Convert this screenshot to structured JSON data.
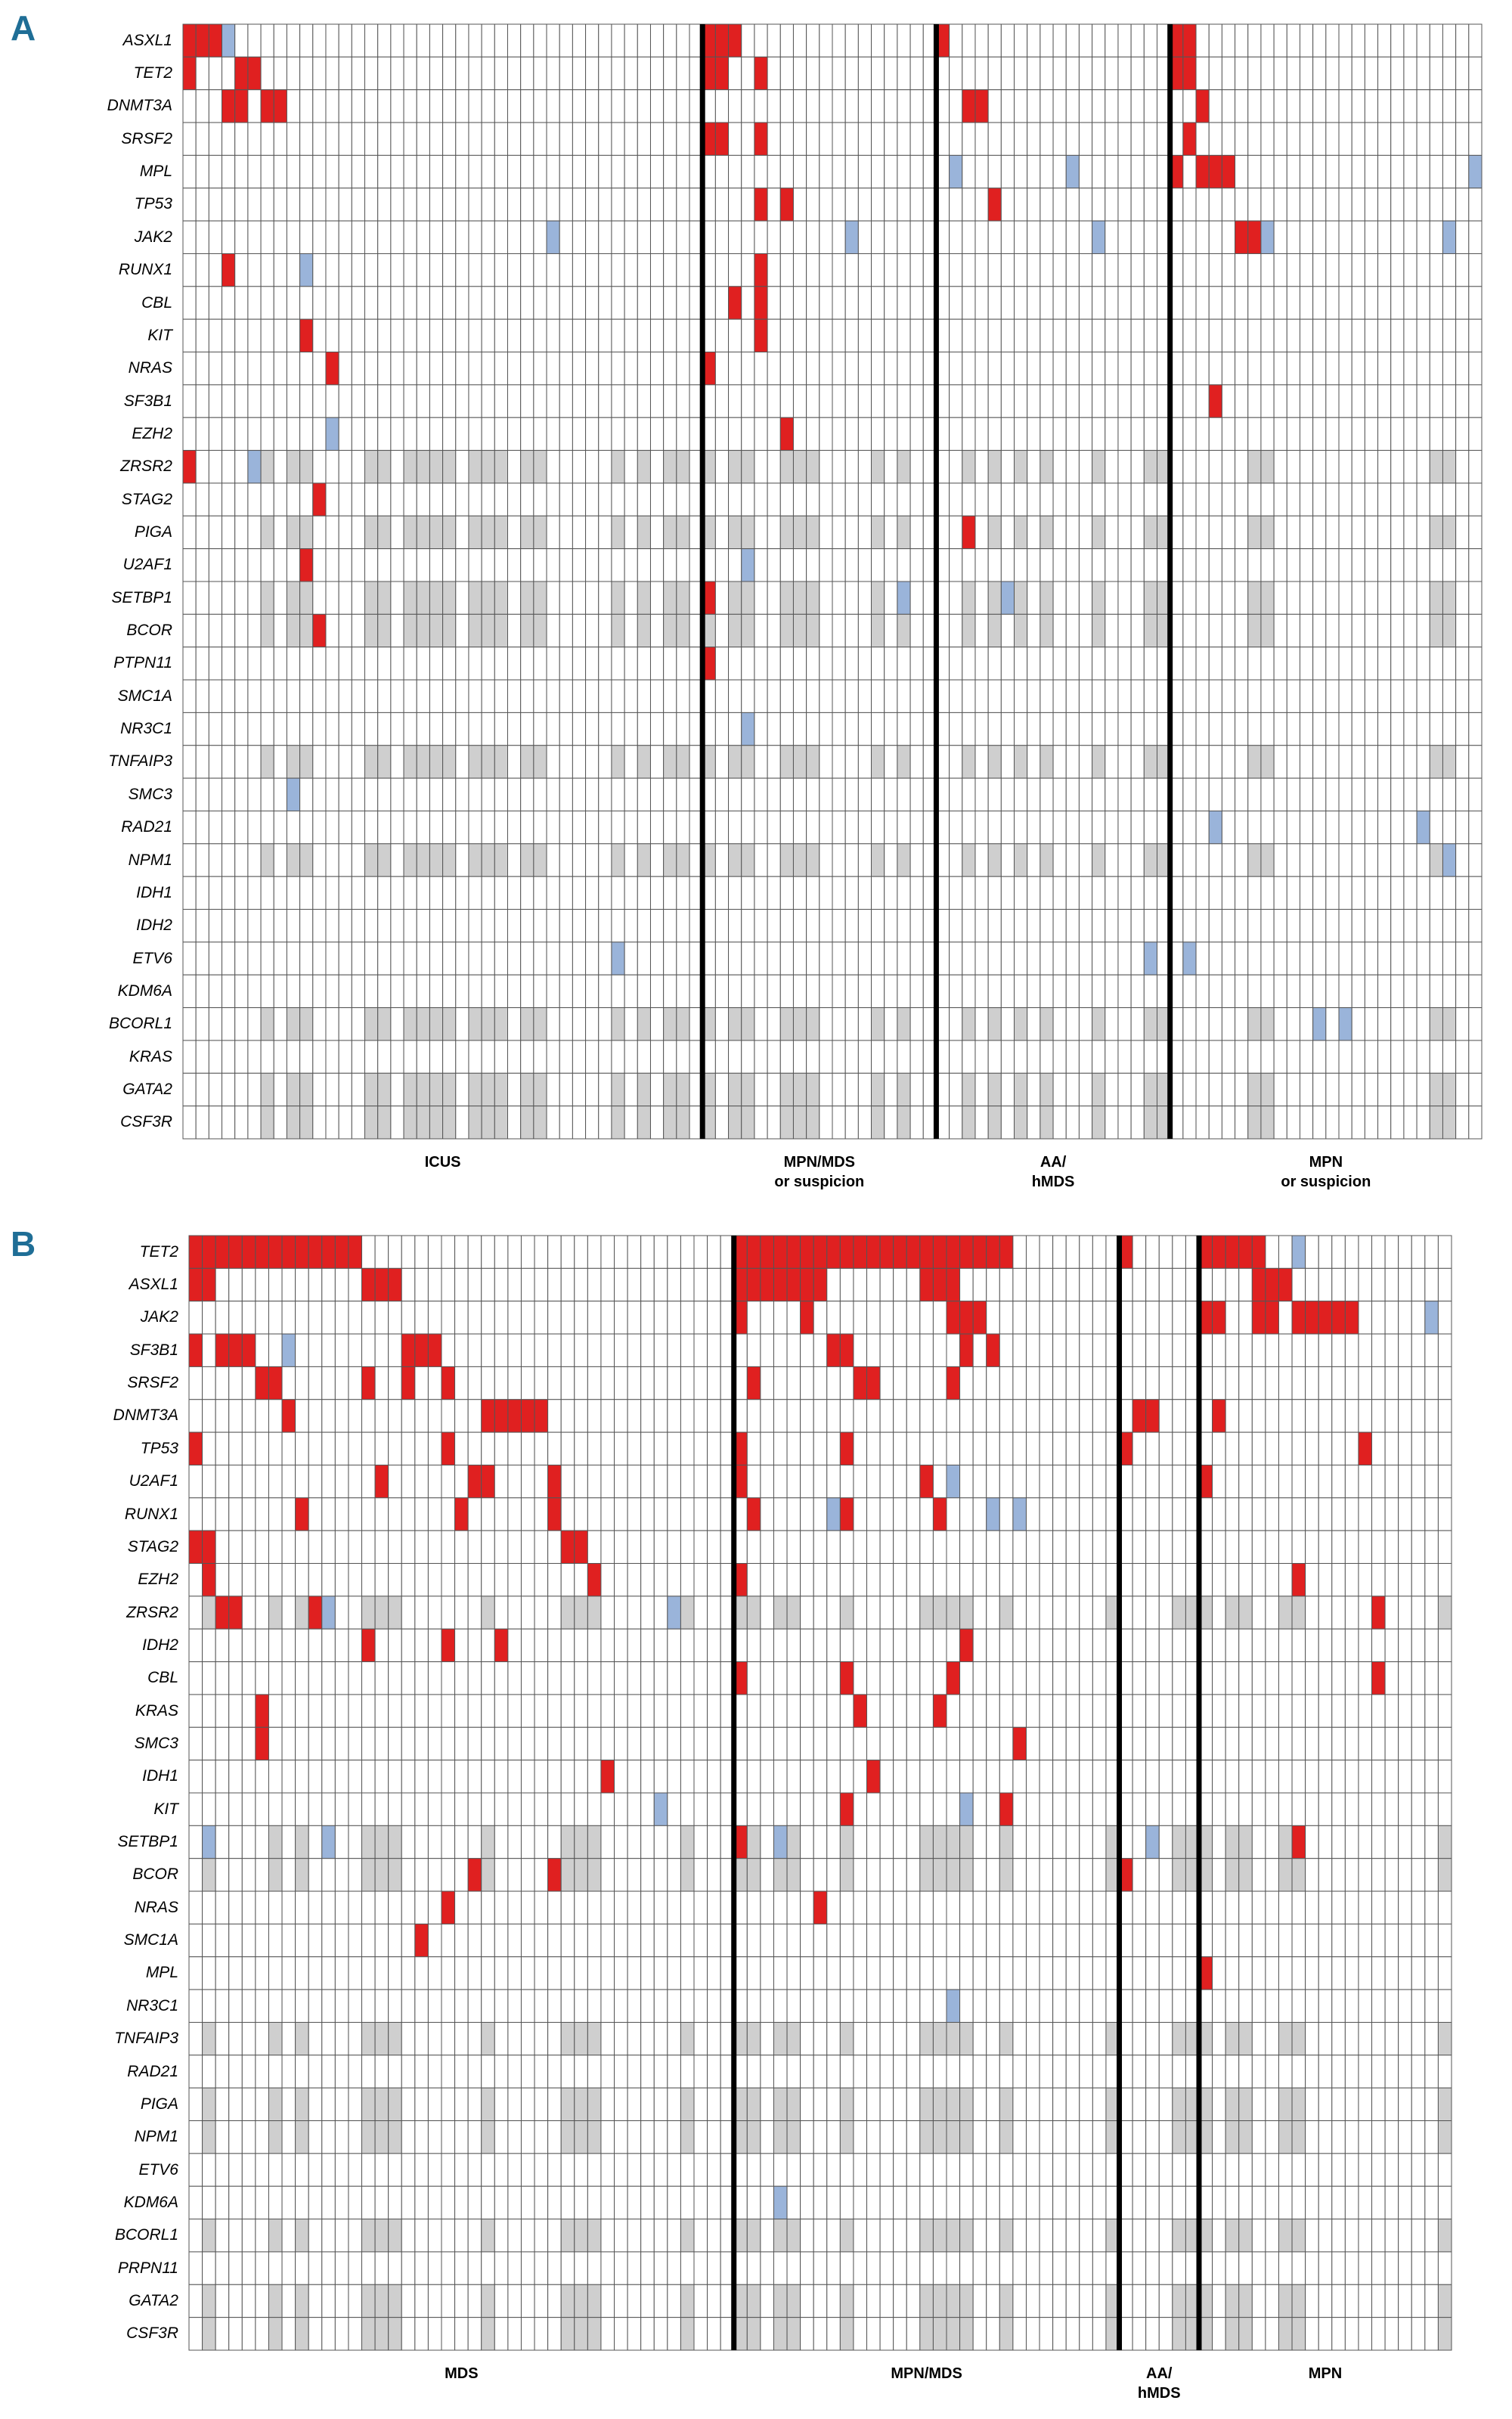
{
  "colors": {
    "mutation": "#e02020",
    "variant": "#9ab4da",
    "not_tested": "#cfcfcf",
    "grid": "#555555",
    "separator": "#000000"
  },
  "chart_data": [
    {
      "type": "heatmap",
      "panel": "A",
      "n_patients": 100,
      "groups": [
        {
          "label": "ICUS",
          "start": 0,
          "count": 40
        },
        {
          "label": "MPN/MDS\nor suspicion",
          "start": 40,
          "count": 18
        },
        {
          "label": "AA/\nhMDS",
          "start": 58,
          "count": 18
        },
        {
          "label": "MPN\nor suspicion",
          "start": 76,
          "count": 24
        }
      ],
      "genes": [
        "ASXL1",
        "TET2",
        "DNMT3A",
        "SRSF2",
        "MPL",
        "TP53",
        "JAK2",
        "RUNX1",
        "CBL",
        "KIT",
        "NRAS",
        "SF3B1",
        "EZH2",
        "ZRSR2",
        "STAG2",
        "PIGA",
        "U2AF1",
        "SETBP1",
        "BCOR",
        "PTPN11",
        "SMC1A",
        "NR3C1",
        "TNFAIP3",
        "SMC3",
        "RAD21",
        "NPM1",
        "IDH1",
        "IDH2",
        "ETV6",
        "KDM6A",
        "BCORL1",
        "KRAS",
        "GATA2",
        "CSF3R"
      ],
      "cells": {
        "ASXL1": {
          "m": [
            0,
            1,
            2,
            40,
            41,
            42,
            58,
            76,
            77
          ],
          "v": [
            3
          ]
        },
        "TET2": {
          "m": [
            0,
            4,
            5,
            40,
            41,
            44,
            76,
            77
          ]
        },
        "DNMT3A": {
          "m": [
            3,
            4,
            6,
            7,
            60,
            61,
            78
          ]
        },
        "SRSF2": {
          "m": [
            40,
            41,
            44,
            77
          ]
        },
        "MPL": {
          "m": [
            76,
            78,
            79,
            80
          ]
        },
        "TP53": {
          "m": [
            44,
            46,
            62
          ]
        },
        "JAK2": {
          "m": [
            81,
            82
          ]
        },
        "RUNX1": {
          "m": [
            3,
            44
          ]
        },
        "CBL": {
          "m": [
            42,
            44
          ]
        },
        "KIT": {
          "m": [
            9,
            44
          ]
        },
        "NRAS": {
          "m": [
            11,
            40
          ]
        },
        "SF3B1": {
          "m": [
            79
          ]
        },
        "EZH2": {
          "m": [
            46
          ]
        },
        "ZRSR2": {
          "m": [
            0
          ]
        },
        "STAG2": {
          "m": [
            10
          ]
        },
        "PIGA": {
          "m": [
            60
          ]
        },
        "U2AF1": {
          "m": [
            9
          ]
        },
        "SETBP1": {
          "m": [
            40
          ]
        },
        "BCOR": {
          "m": [
            10
          ]
        },
        "PTPN11": {
          "m": [
            40
          ]
        }
      },
      "variants": {
        "MPL": [
          59,
          68,
          99
        ],
        "JAK2": [
          28,
          51,
          70,
          83,
          97
        ],
        "RUNX1": [
          9
        ],
        "EZH2": [
          11
        ],
        "ZRSR2": [
          5
        ],
        "U2AF1": [
          43
        ],
        "SETBP1": [
          55,
          63
        ],
        "NR3C1": [
          43
        ],
        "SMC3": [
          8
        ],
        "RAD21": [
          79,
          95
        ],
        "NPM1": [
          97
        ],
        "ETV6": [
          33,
          74,
          77
        ],
        "BCORL1": [
          87,
          89
        ]
      }
    },
    {
      "type": "heatmap",
      "panel": "B",
      "n_patients": 95,
      "groups": [
        {
          "label": "MDS",
          "start": 0,
          "count": 41
        },
        {
          "label": "MPN/MDS",
          "start": 41,
          "count": 29
        },
        {
          "label": "AA/\nhMDS",
          "start": 70,
          "count": 6
        },
        {
          "label": "MPN",
          "start": 76,
          "count": 19
        }
      ],
      "genes": [
        "TET2",
        "ASXL1",
        "JAK2",
        "SF3B1",
        "SRSF2",
        "DNMT3A",
        "TP53",
        "U2AF1",
        "RUNX1",
        "STAG2",
        "EZH2",
        "ZRSR2",
        "IDH2",
        "CBL",
        "KRAS",
        "SMC3",
        "IDH1",
        "KIT",
        "SETBP1",
        "BCOR",
        "NRAS",
        "SMC1A",
        "MPL",
        "NR3C1",
        "TNFAIP3",
        "RAD21",
        "PIGA",
        "NPM1",
        "ETV6",
        "KDM6A",
        "BCORL1",
        "PRPN11",
        "GATA2",
        "CSF3R"
      ],
      "mutations": {
        "TET2": [
          0,
          1,
          2,
          3,
          4,
          5,
          6,
          7,
          8,
          9,
          10,
          11,
          12,
          41,
          42,
          43,
          44,
          45,
          46,
          47,
          48,
          49,
          50,
          51,
          52,
          53,
          54,
          55,
          56,
          57,
          58,
          59,
          60,
          61,
          70,
          76,
          77,
          78,
          79,
          80
        ],
        "ASXL1": [
          0,
          1,
          13,
          14,
          15,
          41,
          42,
          43,
          44,
          45,
          46,
          47,
          55,
          56,
          57,
          80,
          81,
          82
        ],
        "JAK2": [
          41,
          46,
          57,
          58,
          59,
          76,
          77,
          80,
          81,
          83,
          84,
          85,
          86,
          87
        ],
        "SF3B1": [
          0,
          2,
          3,
          4,
          16,
          17,
          18,
          48,
          49,
          58,
          60
        ],
        "SRSF2": [
          5,
          6,
          13,
          16,
          19,
          42,
          50,
          51,
          57
        ],
        "DNMT3A": [
          7,
          22,
          23,
          24,
          25,
          26,
          71,
          72,
          77
        ],
        "TP53": [
          0,
          19,
          41,
          49,
          70,
          88
        ],
        "U2AF1": [
          14,
          21,
          22,
          27,
          41,
          55,
          76
        ],
        "RUNX1": [
          8,
          20,
          27,
          42,
          49,
          56
        ],
        "STAG2": [
          0,
          1,
          28,
          29
        ],
        "EZH2": [
          1,
          30,
          41,
          83
        ],
        "ZRSR2": [
          2,
          3,
          9,
          89
        ],
        "IDH2": [
          13,
          19,
          23,
          58
        ],
        "CBL": [
          41,
          49,
          57,
          89
        ],
        "KRAS": [
          5,
          50,
          56
        ],
        "SMC3": [
          5,
          62
        ],
        "IDH1": [
          31,
          51
        ],
        "KIT": [
          49,
          61
        ],
        "SETBP1": [
          41,
          83
        ],
        "BCOR": [
          21,
          27,
          70
        ],
        "NRAS": [
          19,
          47
        ],
        "SMC1A": [
          17
        ],
        "MPL": [
          76
        ]
      },
      "variants": {
        "TET2": [
          60,
          83
        ],
        "SF3B1": [
          7
        ],
        "U2AF1": [
          57
        ],
        "RUNX1": [
          48,
          60,
          62
        ],
        "ZRSR2": [
          10,
          36
        ],
        "IDH1": [],
        "KIT": [
          35,
          58
        ],
        "SETBP1": [
          1,
          10,
          44,
          72
        ],
        "NR3C1": [
          57
        ],
        "KDM6A": [
          44
        ],
        "JAK2": [
          93
        ]
      },
      "not_tested_rows": [
        "ZRSR2",
        "SETBP1",
        "BCOR",
        "TNFAIP3",
        "PIGA",
        "NPM1",
        "BCORL1",
        "GATA2",
        "CSF3R"
      ]
    }
  ]
}
